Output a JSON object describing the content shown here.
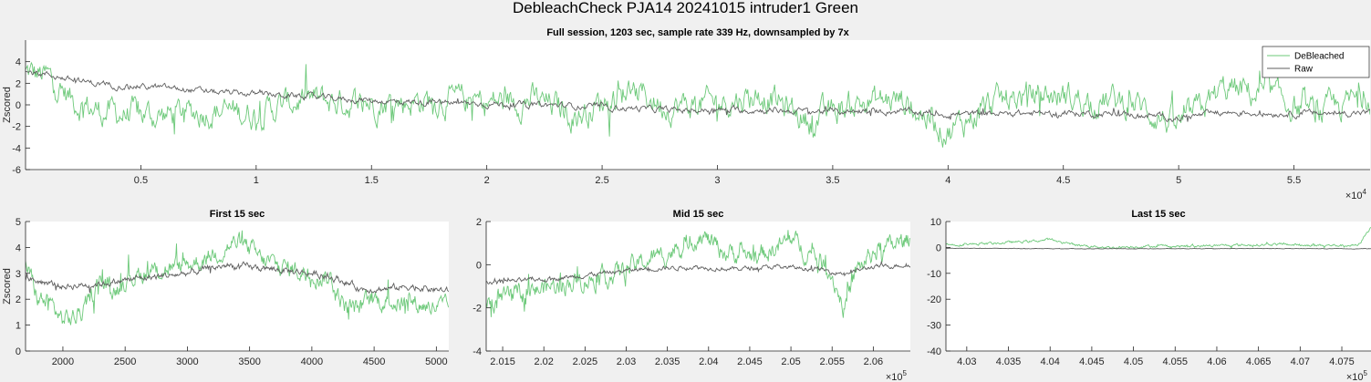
{
  "figure": {
    "title": "DebleachCheck PJA14 20241015  intruder1 Green"
  },
  "colors": {
    "debleached": "#6dc97a",
    "raw": "#5f5f5f",
    "axes_bg": "#ffffff",
    "figure_bg": "#f0f0f0"
  },
  "chart_data": [
    {
      "type": "line",
      "title": "Full session, 1203 sec, sample rate 339 Hz, downsampled by 7x",
      "xlabel": "",
      "ylabel": "Zscored",
      "xlim": [
        0,
        58300
      ],
      "ylim": [
        -6,
        6
      ],
      "x_exponent_label": "×10^4",
      "xticks": [
        5000,
        10000,
        15000,
        20000,
        25000,
        30000,
        35000,
        40000,
        45000,
        50000,
        55000
      ],
      "xtick_labels": [
        "0.5",
        "1",
        "1.5",
        "2",
        "2.5",
        "3",
        "3.5",
        "4",
        "4.5",
        "5",
        "5.5"
      ],
      "yticks": [
        -6,
        -4,
        -2,
        0,
        2,
        4
      ],
      "ytick_labels": [
        "-6",
        "-4",
        "-2",
        "0",
        "2",
        "4"
      ],
      "legend": {
        "placement": "top-right",
        "entries": [
          "DeBleached",
          "Raw"
        ]
      },
      "series": [
        {
          "name": "DeBleached",
          "x": [
            0,
            1000,
            2000,
            3000,
            4000,
            6000,
            8000,
            10000,
            12000,
            14000,
            16000,
            18000,
            20000,
            22000,
            24000,
            26000,
            28000,
            30000,
            32000,
            34000,
            36000,
            38000,
            40000,
            42000,
            44000,
            46000,
            48000,
            50000,
            52000,
            54000,
            56000,
            58300
          ],
          "values": [
            3.0,
            2.5,
            0.5,
            -0.5,
            -0.8,
            -1.0,
            -0.5,
            -0.8,
            0.5,
            0.2,
            0.2,
            0.5,
            0.2,
            0.5,
            -1.0,
            1.5,
            -0.2,
            0.2,
            1.0,
            -1.5,
            0.2,
            0.5,
            -2.5,
            0.2,
            1.0,
            0.5,
            0.2,
            -2.0,
            1.5,
            0.8,
            -1.0,
            1.0
          ],
          "noise_amplitude": 1.6
        },
        {
          "name": "Raw",
          "x": [
            0,
            1000,
            2000,
            3000,
            4000,
            6000,
            8000,
            10000,
            12000,
            14000,
            16000,
            18000,
            20000,
            22000,
            24000,
            26000,
            28000,
            30000,
            32000,
            34000,
            36000,
            38000,
            40000,
            42000,
            44000,
            46000,
            48000,
            50000,
            52000,
            54000,
            56000,
            58300
          ],
          "values": [
            3.0,
            2.8,
            2.3,
            2.0,
            1.8,
            1.6,
            1.2,
            1.0,
            0.8,
            0.5,
            0.3,
            0.2,
            0.1,
            0.0,
            -0.1,
            -0.3,
            -0.5,
            -0.5,
            -0.5,
            -0.6,
            -0.6,
            -0.6,
            -0.9,
            -0.8,
            -0.8,
            -0.8,
            -0.9,
            -1.2,
            -0.7,
            -0.8,
            -0.8,
            -0.7
          ],
          "noise_amplitude": 0.35
        }
      ]
    },
    {
      "type": "line",
      "title": "First 15 sec",
      "xlabel": "",
      "ylabel": "Zscored",
      "xlim": [
        1700,
        5100
      ],
      "ylim": [
        0,
        5
      ],
      "xticks": [
        2000,
        2500,
        3000,
        3500,
        4000,
        4500,
        5000
      ],
      "xtick_labels": [
        "2000",
        "2500",
        "3000",
        "3500",
        "4000",
        "4500",
        "5000"
      ],
      "yticks": [
        0,
        1,
        2,
        3,
        4,
        5
      ],
      "ytick_labels": [
        "0",
        "1",
        "2",
        "3",
        "4",
        "5"
      ],
      "series": [
        {
          "name": "DeBleached",
          "x": [
            1700,
            1800,
            1900,
            2000,
            2100,
            2200,
            2300,
            2400,
            2500,
            2700,
            2900,
            3100,
            3300,
            3400,
            3500,
            3600,
            3800,
            4000,
            4150,
            4250,
            4350,
            4500,
            4700,
            4900,
            5100
          ],
          "values": [
            3.5,
            2.0,
            1.8,
            1.2,
            1.3,
            1.8,
            2.8,
            2.3,
            2.8,
            3.1,
            3.2,
            3.5,
            4.0,
            4.2,
            3.9,
            3.5,
            3.2,
            3.0,
            2.8,
            1.8,
            1.6,
            2.0,
            1.9,
            1.8,
            1.6
          ],
          "noise_amplitude": 0.45
        },
        {
          "name": "Raw",
          "x": [
            1700,
            2000,
            2300,
            2600,
            3000,
            3300,
            3600,
            4000,
            4200,
            4400,
            4600,
            4800,
            5100
          ],
          "values": [
            2.8,
            2.5,
            2.6,
            2.8,
            3.0,
            3.3,
            3.2,
            3.0,
            2.8,
            2.4,
            2.4,
            2.5,
            2.3
          ],
          "noise_amplitude": 0.15
        }
      ]
    },
    {
      "type": "line",
      "title": "Mid 15 sec",
      "xlabel": "",
      "ylabel": "",
      "xlim": [
        201300,
        206450
      ],
      "ylim": [
        -4,
        2
      ],
      "x_exponent_label": "×10^5",
      "xticks": [
        201500,
        202000,
        202500,
        203000,
        203500,
        204000,
        204500,
        205000,
        205500,
        206000
      ],
      "xtick_labels": [
        "2.015",
        "2.02",
        "2.025",
        "2.03",
        "2.035",
        "2.04",
        "2.045",
        "2.05",
        "2.055",
        "2.06"
      ],
      "yticks": [
        -4,
        -2,
        0,
        2
      ],
      "ytick_labels": [
        "-4",
        "-2",
        "0",
        "2"
      ],
      "series": [
        {
          "name": "DeBleached",
          "x": [
            201300,
            201800,
            202300,
            202800,
            203200,
            203600,
            203900,
            204200,
            204600,
            205000,
            205300,
            205500,
            205650,
            205800,
            206000,
            206200,
            206450
          ],
          "values": [
            -1.8,
            -1.3,
            -0.8,
            -0.5,
            0.1,
            0.7,
            1.4,
            0.6,
            0.4,
            1.1,
            0.4,
            -0.5,
            -2.0,
            -0.3,
            0.6,
            0.8,
            1.2
          ],
          "noise_amplitude": 0.55
        },
        {
          "name": "Raw",
          "x": [
            201300,
            202000,
            202700,
            203200,
            203800,
            204300,
            204800,
            205300,
            205650,
            206000,
            206450
          ],
          "values": [
            -0.8,
            -0.7,
            -0.4,
            -0.2,
            -0.1,
            -0.2,
            -0.1,
            -0.2,
            -0.4,
            -0.1,
            0.0
          ],
          "noise_amplitude": 0.12
        }
      ]
    },
    {
      "type": "line",
      "title": "Last 15 sec",
      "xlabel": "",
      "ylabel": "",
      "xlim": [
        402750,
        407850
      ],
      "ylim": [
        -40,
        10
      ],
      "x_exponent_label": "×10^5",
      "xticks": [
        403000,
        403500,
        404000,
        404500,
        405000,
        405500,
        406000,
        406500,
        407000,
        407500
      ],
      "xtick_labels": [
        "4.03",
        "4.035",
        "4.04",
        "4.045",
        "4.05",
        "4.055",
        "4.06",
        "4.065",
        "4.07",
        "4.075"
      ],
      "yticks": [
        -40,
        -30,
        -20,
        -10,
        0,
        10
      ],
      "ytick_labels": [
        "-40",
        "-30",
        "-20",
        "-10",
        "0",
        "10"
      ],
      "series": [
        {
          "name": "DeBleached",
          "x": [
            402750,
            403300,
            403800,
            404000,
            404300,
            404700,
            405200,
            405700,
            406200,
            406700,
            407200,
            407700,
            407850
          ],
          "values": [
            1.0,
            1.5,
            2.5,
            3.0,
            1.0,
            0.0,
            0.5,
            0.5,
            0.8,
            1.2,
            0.8,
            0.8,
            8.0
          ],
          "noise_amplitude": 0.6
        },
        {
          "name": "Raw",
          "x": [
            402750,
            403500,
            404300,
            405000,
            405800,
            406600,
            407400,
            407850
          ],
          "values": [
            -0.3,
            -0.4,
            -0.5,
            -0.5,
            -0.5,
            -0.4,
            -0.5,
            -0.5
          ],
          "noise_amplitude": 0.1
        }
      ]
    }
  ]
}
